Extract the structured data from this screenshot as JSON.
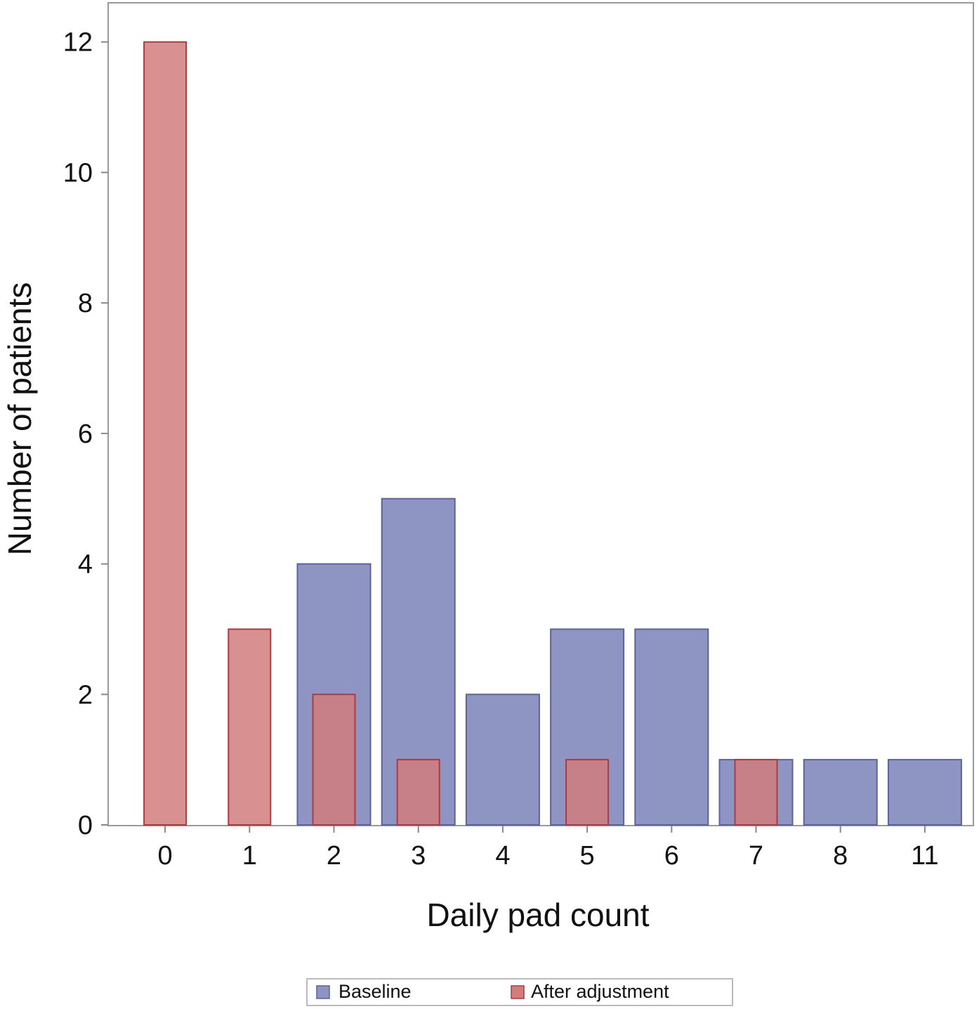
{
  "chart_data": {
    "type": "bar",
    "xlabel": "Daily pad count",
    "ylabel": "Number of patients",
    "categories": [
      "0",
      "1",
      "2",
      "3",
      "4",
      "5",
      "6",
      "7",
      "8",
      "11"
    ],
    "ylim": [
      0,
      12.6
    ],
    "yticks": [
      0,
      2,
      4,
      6,
      8,
      10,
      12
    ],
    "grid": false,
    "legend_position": "bottom",
    "series": [
      {
        "name": "Baseline",
        "color": "#8e95c2",
        "edge": "#5a63a0",
        "values": [
          0,
          0,
          4,
          5,
          2,
          3,
          3,
          1,
          1,
          1
        ]
      },
      {
        "name": "After adjustment",
        "color": "#d17d7d",
        "edge": "#b03a3a",
        "values": [
          12,
          3,
          2,
          1,
          0,
          1,
          0,
          1,
          0,
          0
        ]
      }
    ]
  }
}
